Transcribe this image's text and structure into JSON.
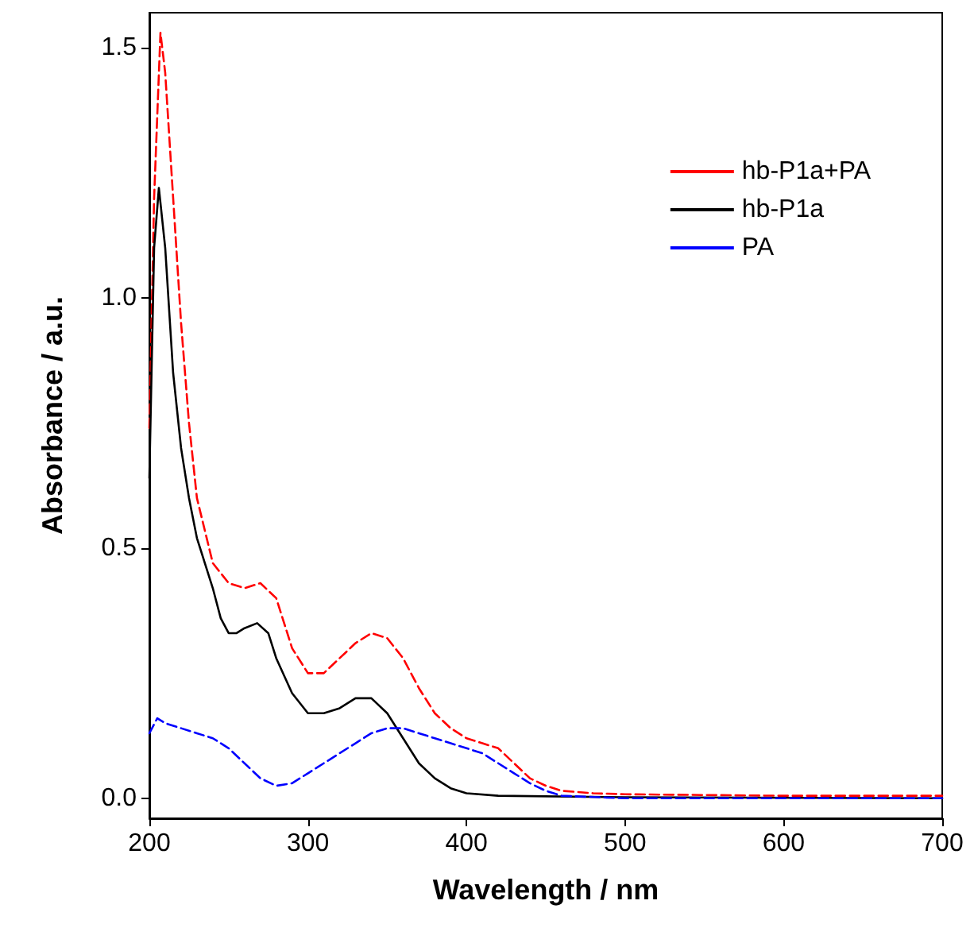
{
  "chart_data": {
    "type": "line",
    "xlabel": "Wavelength / nm",
    "ylabel": "Absorbance / a.u.",
    "xlim": [
      200,
      700
    ],
    "xticks": [
      200,
      300,
      400,
      500,
      600,
      700
    ],
    "ylim": [
      -0.04,
      1.57
    ],
    "yticks": [
      {
        "value": 0,
        "label": "0.0"
      },
      {
        "value": 0.5,
        "label": "0.5"
      },
      {
        "value": 1,
        "label": "1.0"
      },
      {
        "value": 1.5,
        "label": "1.5"
      }
    ],
    "grid": false,
    "legend": "top right",
    "marker": "none",
    "series": [
      {
        "name": "hb-P1a+PA",
        "color": "#ff0000",
        "line_style": "dashed",
        "x": [
          200,
          203,
          207,
          210,
          215,
          220,
          225,
          230,
          240,
          250,
          260,
          270,
          280,
          290,
          300,
          310,
          320,
          330,
          340,
          350,
          360,
          370,
          380,
          390,
          400,
          410,
          420,
          430,
          440,
          450,
          460,
          480,
          500,
          600,
          700
        ],
        "values": [
          0.74,
          1.2,
          1.53,
          1.45,
          1.2,
          0.95,
          0.75,
          0.6,
          0.47,
          0.43,
          0.42,
          0.43,
          0.4,
          0.3,
          0.25,
          0.25,
          0.28,
          0.31,
          0.33,
          0.32,
          0.28,
          0.22,
          0.17,
          0.14,
          0.12,
          0.11,
          0.1,
          0.07,
          0.04,
          0.025,
          0.015,
          0.01,
          0.008,
          0.005,
          0.005
        ]
      },
      {
        "name": "hb-P1a",
        "color": "#000000",
        "line_style": "solid",
        "x": [
          200,
          203,
          206,
          210,
          215,
          220,
          225,
          230,
          235,
          240,
          245,
          250,
          255,
          260,
          268,
          275,
          280,
          290,
          300,
          310,
          320,
          330,
          340,
          350,
          360,
          370,
          380,
          390,
          400,
          420,
          500,
          700
        ],
        "values": [
          0.64,
          1.1,
          1.22,
          1.1,
          0.85,
          0.7,
          0.6,
          0.52,
          0.47,
          0.42,
          0.36,
          0.33,
          0.33,
          0.34,
          0.35,
          0.33,
          0.28,
          0.21,
          0.17,
          0.17,
          0.18,
          0.2,
          0.2,
          0.17,
          0.12,
          0.07,
          0.04,
          0.02,
          0.01,
          0.005,
          0.002,
          0
        ]
      },
      {
        "name": "PA",
        "color": "#0000ff",
        "line_style": "dashed",
        "x": [
          200,
          205,
          210,
          220,
          230,
          240,
          250,
          260,
          270,
          280,
          290,
          300,
          310,
          320,
          330,
          340,
          350,
          360,
          370,
          380,
          390,
          400,
          410,
          420,
          430,
          440,
          450,
          460,
          500,
          700
        ],
        "values": [
          0.13,
          0.16,
          0.15,
          0.14,
          0.13,
          0.12,
          0.1,
          0.07,
          0.04,
          0.025,
          0.03,
          0.05,
          0.07,
          0.09,
          0.11,
          0.13,
          0.14,
          0.14,
          0.13,
          0.12,
          0.11,
          0.1,
          0.09,
          0.07,
          0.05,
          0.03,
          0.015,
          0.005,
          0,
          0
        ]
      }
    ]
  }
}
